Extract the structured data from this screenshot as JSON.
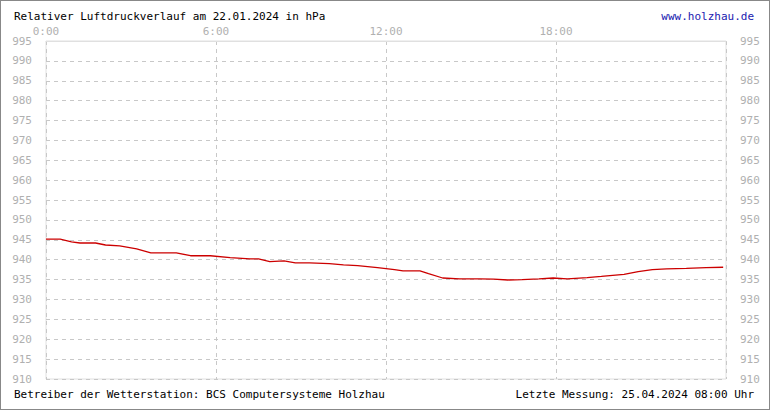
{
  "chart_data": {
    "type": "line",
    "title": "Relativer Luftdruckverlauf am 22.01.2024 in hPa",
    "annotations": [
      "www.holzhau.de",
      "Betreiber der Wetterstation: BCS Computersysteme Holzhau",
      "Letzte Messung: 25.04.2024 08:00 Uhr"
    ],
    "x": [
      0,
      0.5,
      0.9,
      1.2,
      1.75,
      2.1,
      2.6,
      3.2,
      3.7,
      4.6,
      5.1,
      5.8,
      6.5,
      7.2,
      7.5,
      7.9,
      8.4,
      8.8,
      9.3,
      10,
      10.5,
      11,
      11.7,
      12.3,
      12.6,
      13.2,
      13.5,
      14,
      14.6,
      15.3,
      15.8,
      16.3,
      16.8,
      17.4,
      17.9,
      18.4,
      19.1,
      19.6,
      20.4,
      20.9,
      21.4,
      21.9,
      22.6,
      23.3,
      23.9
    ],
    "values": [
      945.2,
      945.2,
      944.5,
      944.2,
      944.2,
      943.7,
      943.5,
      942.7,
      941.7,
      941.7,
      941,
      941,
      940.5,
      940.2,
      940.2,
      939.5,
      939.7,
      939.2,
      939.2,
      939,
      938.7,
      938.5,
      938,
      937.5,
      937.2,
      937.2,
      936.5,
      935.4,
      935.2,
      935.2,
      935.1,
      934.9,
      935,
      935.2,
      935.4,
      935.2,
      935.5,
      935.8,
      936.3,
      937,
      937.5,
      937.7,
      937.8,
      938,
      938.1
    ],
    "color": "#cc0000",
    "xlim": [
      0,
      24
    ],
    "xticks": [
      {
        "value": 0,
        "label": "0:00"
      },
      {
        "value": 6,
        "label": "6:00"
      },
      {
        "value": 12,
        "label": "12:00"
      },
      {
        "value": 18,
        "label": "18:00"
      }
    ],
    "ylim": [
      910,
      995
    ],
    "yticks": [
      910,
      915,
      920,
      925,
      930,
      935,
      940,
      945,
      950,
      955,
      960,
      965,
      970,
      975,
      980,
      985,
      990,
      995
    ],
    "grid": true
  }
}
